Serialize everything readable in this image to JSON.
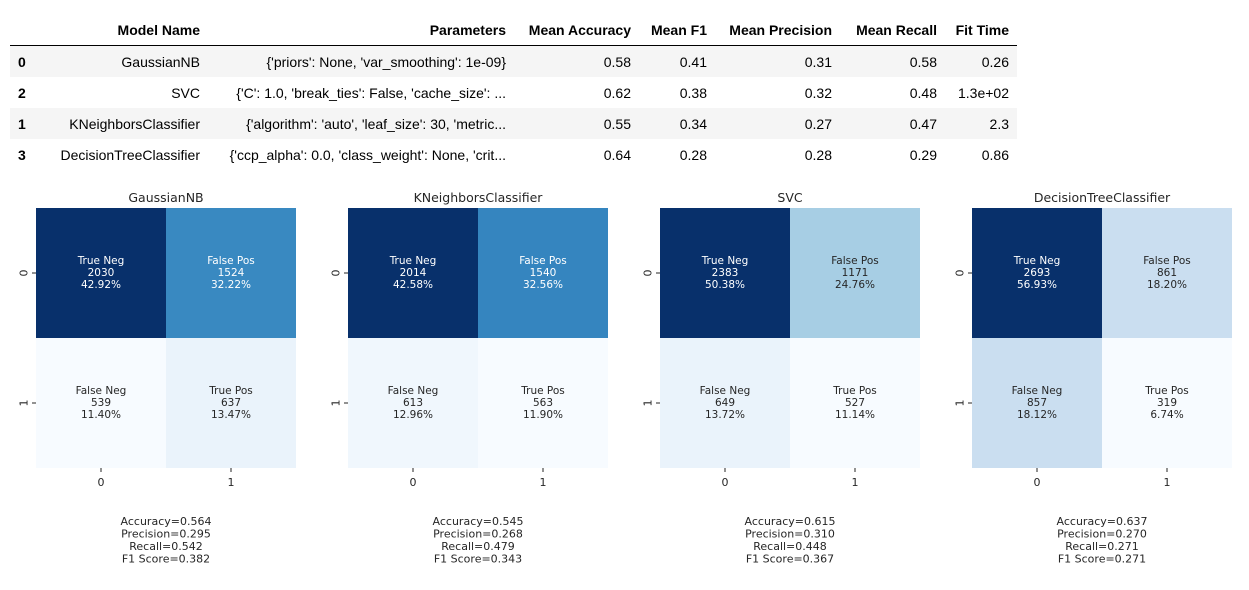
{
  "results_table": {
    "headers": {
      "index": "",
      "model_name": "Model Name",
      "parameters": "Parameters",
      "mean_accuracy": "Mean Accuracy",
      "mean_f1": "Mean F1",
      "mean_precision": "Mean Precision",
      "mean_recall": "Mean Recall",
      "fit_time": "Fit Time"
    },
    "rows": [
      {
        "index": "0",
        "model_name": "GaussianNB",
        "parameters": "{'priors': None, 'var_smoothing': 1e-09}",
        "mean_accuracy": "0.58",
        "mean_f1": "0.41",
        "mean_precision": "0.31",
        "mean_recall": "0.58",
        "fit_time": "0.26"
      },
      {
        "index": "2",
        "model_name": "SVC",
        "parameters": "{'C': 1.0, 'break_ties': False, 'cache_size': ...",
        "mean_accuracy": "0.62",
        "mean_f1": "0.38",
        "mean_precision": "0.32",
        "mean_recall": "0.48",
        "fit_time": "1.3e+02"
      },
      {
        "index": "1",
        "model_name": "KNeighborsClassifier",
        "parameters": "{'algorithm': 'auto', 'leaf_size': 30, 'metric...",
        "mean_accuracy": "0.55",
        "mean_f1": "0.34",
        "mean_precision": "0.27",
        "mean_recall": "0.47",
        "fit_time": "2.3"
      },
      {
        "index": "3",
        "model_name": "DecisionTreeClassifier",
        "parameters": "{'ccp_alpha': 0.0, 'class_weight': None, 'crit...",
        "mean_accuracy": "0.64",
        "mean_f1": "0.28",
        "mean_precision": "0.28",
        "mean_recall": "0.29",
        "fit_time": "0.86"
      }
    ]
  },
  "chart_data": [
    {
      "type": "heatmap",
      "title": "GaussianNB",
      "x_ticks": [
        "0",
        "1"
      ],
      "y_ticks": [
        "0",
        "1"
      ],
      "colormap": "Blues",
      "cells": [
        [
          {
            "label": "True Neg",
            "count": 2030,
            "percent": "42.92%"
          },
          {
            "label": "False Pos",
            "count": 1524,
            "percent": "32.22%"
          }
        ],
        [
          {
            "label": "False Neg",
            "count": 539,
            "percent": "11.40%"
          },
          {
            "label": "True Pos",
            "count": 637,
            "percent": "13.47%"
          }
        ]
      ],
      "metrics": [
        "Accuracy=0.564",
        "Precision=0.295",
        "Recall=0.542",
        "F1 Score=0.382"
      ]
    },
    {
      "type": "heatmap",
      "title": "KNeighborsClassifier",
      "x_ticks": [
        "0",
        "1"
      ],
      "y_ticks": [
        "0",
        "1"
      ],
      "colormap": "Blues",
      "cells": [
        [
          {
            "label": "True Neg",
            "count": 2014,
            "percent": "42.58%"
          },
          {
            "label": "False Pos",
            "count": 1540,
            "percent": "32.56%"
          }
        ],
        [
          {
            "label": "False Neg",
            "count": 613,
            "percent": "12.96%"
          },
          {
            "label": "True Pos",
            "count": 563,
            "percent": "11.90%"
          }
        ]
      ],
      "metrics": [
        "Accuracy=0.545",
        "Precision=0.268",
        "Recall=0.479",
        "F1 Score=0.343"
      ]
    },
    {
      "type": "heatmap",
      "title": "SVC",
      "x_ticks": [
        "0",
        "1"
      ],
      "y_ticks": [
        "0",
        "1"
      ],
      "colormap": "Blues",
      "cells": [
        [
          {
            "label": "True Neg",
            "count": 2383,
            "percent": "50.38%"
          },
          {
            "label": "False Pos",
            "count": 1171,
            "percent": "24.76%"
          }
        ],
        [
          {
            "label": "False Neg",
            "count": 649,
            "percent": "13.72%"
          },
          {
            "label": "True Pos",
            "count": 527,
            "percent": "11.14%"
          }
        ]
      ],
      "metrics": [
        "Accuracy=0.615",
        "Precision=0.310",
        "Recall=0.448",
        "F1 Score=0.367"
      ]
    },
    {
      "type": "heatmap",
      "title": "DecisionTreeClassifier",
      "x_ticks": [
        "0",
        "1"
      ],
      "y_ticks": [
        "0",
        "1"
      ],
      "colormap": "Blues",
      "cells": [
        [
          {
            "label": "True Neg",
            "count": 2693,
            "percent": "56.93%"
          },
          {
            "label": "False Pos",
            "count": 861,
            "percent": "18.20%"
          }
        ],
        [
          {
            "label": "False Neg",
            "count": 857,
            "percent": "18.12%"
          },
          {
            "label": "True Pos",
            "count": 319,
            "percent": "6.74%"
          }
        ]
      ],
      "metrics": [
        "Accuracy=0.637",
        "Precision=0.270",
        "Recall=0.271",
        "F1 Score=0.271"
      ]
    }
  ]
}
